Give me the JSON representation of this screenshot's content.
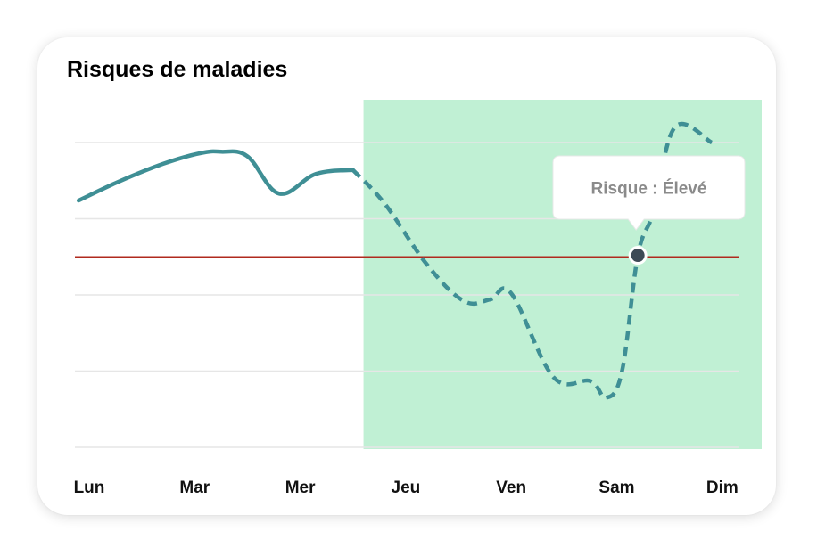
{
  "card": {
    "title": "Risques de maladies"
  },
  "colors": {
    "line": "#3f8f95",
    "forecast_area": "#c0f0d4",
    "threshold": "#b02a1e",
    "grid": "#e6e6e6",
    "marker": "#3d4a56"
  },
  "chart_data": {
    "type": "line",
    "title": "Risques de maladies",
    "xlabel": "",
    "ylabel": "",
    "categories": [
      "Lun",
      "Mar",
      "Mer",
      "Jeu",
      "Ven",
      "Sam",
      "Dim"
    ],
    "ylim": [
      0,
      4
    ],
    "grid": true,
    "y_gridlines": [
      0,
      1,
      2,
      3,
      4
    ],
    "threshold": 2.5,
    "forecast_start": 2.6,
    "series": [
      {
        "style": "solid",
        "x": [
          -0.1,
          0.3,
          0.7,
          1.05,
          1.25,
          1.5,
          1.8,
          2.15,
          2.5
        ],
        "y": [
          3.24,
          3.5,
          3.72,
          3.86,
          3.88,
          3.82,
          3.33,
          3.59,
          3.64
        ]
      },
      {
        "style": "dashed",
        "x": [
          2.5,
          2.8,
          3.2,
          3.55,
          3.8,
          4.0,
          4.4,
          4.75,
          4.9,
          5.05,
          5.2,
          5.35,
          5.55,
          5.9
        ],
        "y": [
          3.64,
          3.2,
          2.4,
          1.92,
          1.94,
          2.02,
          0.92,
          0.87,
          0.65,
          1.0,
          2.52,
          3.1,
          4.2,
          4.0
        ]
      }
    ],
    "highlight": {
      "x": 5.2,
      "y": 2.52,
      "label": "Risque : Élevé"
    }
  }
}
